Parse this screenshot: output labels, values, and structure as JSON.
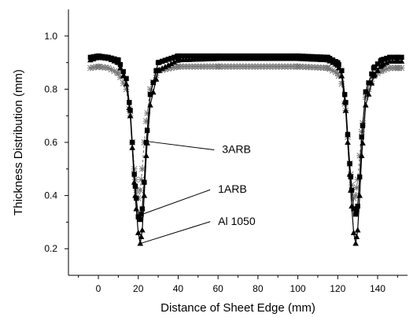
{
  "chart_data": {
    "type": "line",
    "title": "",
    "xlabel": "Distance of Sheet Edge (mm)",
    "ylabel": "Thickness Distribution (mm)",
    "xlim": [
      -15,
      155
    ],
    "ylim": [
      0.1,
      1.1
    ],
    "xticks": [
      "0",
      "20",
      "40",
      "60",
      "80",
      "100",
      "120",
      "140"
    ],
    "yticks": [
      "0.2",
      "0.4",
      "0.6",
      "0.8",
      "1.0"
    ],
    "xtick_values": [
      0,
      20,
      40,
      60,
      80,
      100,
      120,
      140
    ],
    "ytick_values": [
      0.2,
      0.4,
      0.6,
      0.8,
      1.0
    ],
    "grid": false,
    "series": [
      {
        "name": "Al 1050",
        "marker": "triangle",
        "line": "solid",
        "color": "#000000",
        "x": [
          -4,
          0,
          5,
          10,
          14,
          16,
          17,
          18,
          19,
          20,
          21,
          22,
          23,
          24,
          26,
          30,
          40,
          60,
          80,
          100,
          115,
          120,
          122,
          124,
          125,
          126,
          127,
          128,
          129,
          130,
          131,
          132,
          134,
          138,
          142,
          146,
          150,
          152
        ],
        "y": [
          0.91,
          0.92,
          0.915,
          0.9,
          0.82,
          0.7,
          0.58,
          0.45,
          0.35,
          0.26,
          0.22,
          0.27,
          0.4,
          0.55,
          0.74,
          0.87,
          0.91,
          0.915,
          0.915,
          0.915,
          0.91,
          0.89,
          0.85,
          0.72,
          0.6,
          0.48,
          0.36,
          0.26,
          0.22,
          0.27,
          0.4,
          0.55,
          0.74,
          0.85,
          0.89,
          0.905,
          0.905,
          0.905
        ]
      },
      {
        "name": "1ARB",
        "marker": "square",
        "line": "solid",
        "color": "#000000",
        "x": [
          -4,
          0,
          5,
          10,
          14,
          16,
          17,
          18,
          19,
          20,
          21,
          22,
          23,
          24,
          26,
          30,
          40,
          60,
          80,
          100,
          115,
          120,
          122,
          124,
          125,
          126,
          127,
          128,
          129,
          130,
          131,
          132,
          134,
          138,
          142,
          146,
          150,
          152
        ],
        "y": [
          0.92,
          0.925,
          0.92,
          0.91,
          0.84,
          0.72,
          0.6,
          0.48,
          0.39,
          0.32,
          0.31,
          0.35,
          0.45,
          0.6,
          0.78,
          0.9,
          0.925,
          0.925,
          0.925,
          0.925,
          0.92,
          0.9,
          0.87,
          0.75,
          0.63,
          0.52,
          0.42,
          0.35,
          0.33,
          0.36,
          0.47,
          0.62,
          0.79,
          0.88,
          0.91,
          0.92,
          0.92,
          0.92
        ]
      },
      {
        "name": "3ARB",
        "marker": "star",
        "line": "dashed",
        "color": "#7a7a7a",
        "x": [
          -4,
          0,
          5,
          10,
          14,
          16,
          17,
          18,
          19,
          20,
          21,
          22,
          23,
          24,
          26,
          30,
          40,
          60,
          80,
          100,
          115,
          120,
          122,
          124,
          125,
          126,
          127,
          128,
          129,
          130,
          131,
          132,
          134,
          138,
          142,
          146,
          150,
          152
        ],
        "y": [
          0.88,
          0.885,
          0.88,
          0.86,
          0.8,
          0.7,
          0.6,
          0.5,
          0.42,
          0.39,
          0.42,
          0.5,
          0.6,
          0.68,
          0.8,
          0.87,
          0.885,
          0.885,
          0.885,
          0.885,
          0.88,
          0.86,
          0.82,
          0.72,
          0.62,
          0.52,
          0.44,
          0.39,
          0.4,
          0.46,
          0.55,
          0.64,
          0.77,
          0.85,
          0.87,
          0.88,
          0.88,
          0.88
        ]
      }
    ],
    "annotations": [
      {
        "text": "3ARB",
        "point": [
          22,
          0.605
        ],
        "label_at": [
          62,
          0.56
        ]
      },
      {
        "text": "1ARB",
        "point": [
          21,
          0.33
        ],
        "label_at": [
          60,
          0.41
        ]
      },
      {
        "text": "Al 1050",
        "point": [
          20,
          0.22
        ],
        "label_at": [
          60,
          0.29
        ]
      }
    ]
  }
}
